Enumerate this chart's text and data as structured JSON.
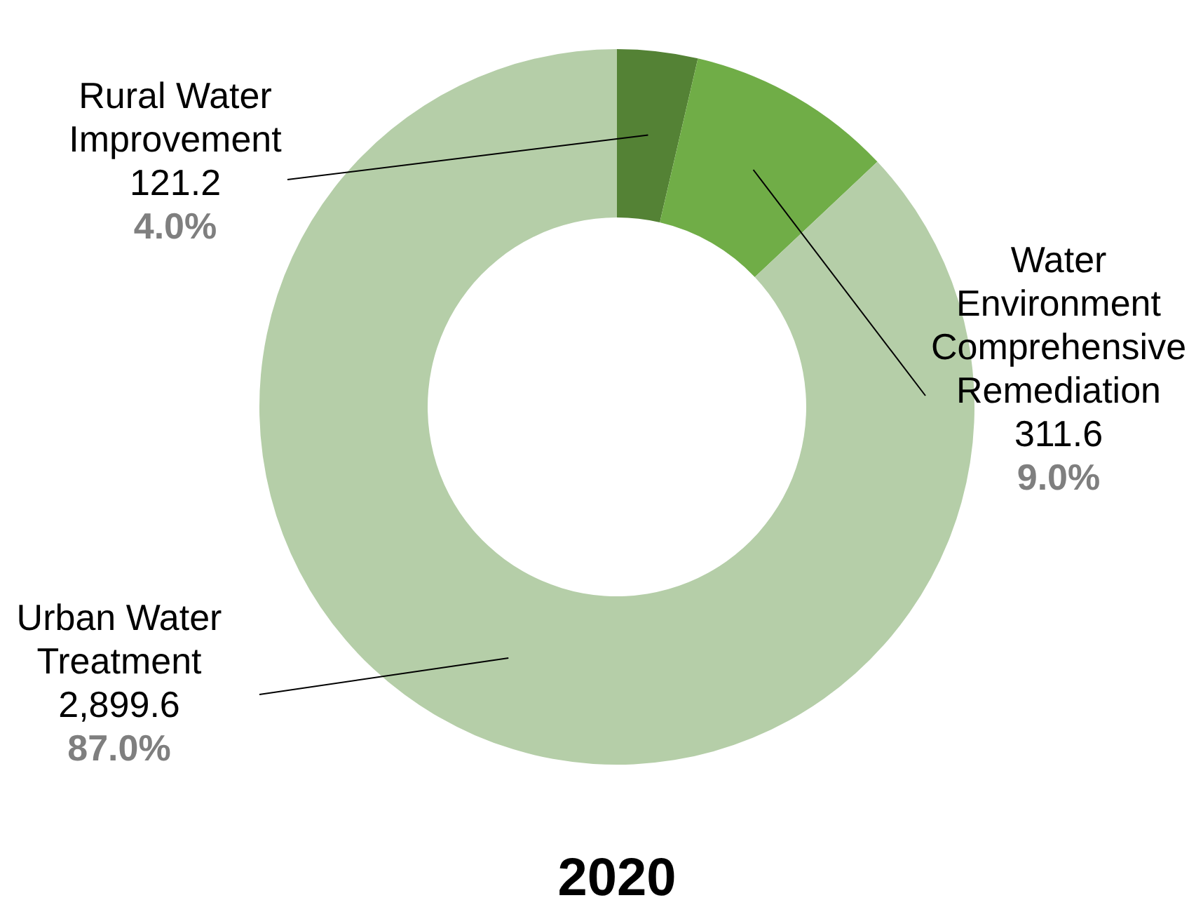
{
  "chart_data": {
    "type": "donut",
    "title": "2020",
    "categories": [
      "Rural Water Improvement",
      "Water Environment Comprehensive Remediation",
      "Urban Water Treatment"
    ],
    "values": [
      121.2,
      311.6,
      2899.6
    ],
    "value_labels": [
      "121.2",
      "311.6",
      "2,899.6"
    ],
    "colors": [
      "#548235",
      "#70ad47",
      "#b5cea8"
    ],
    "annotations": [
      {
        "text": "4.0%",
        "x": "Rural Water Improvement"
      },
      {
        "text": "9.0%",
        "x": "Water Environment Comprehensive Remediation"
      },
      {
        "text": "87.0%",
        "x": "Urban Water Treatment"
      }
    ]
  }
}
